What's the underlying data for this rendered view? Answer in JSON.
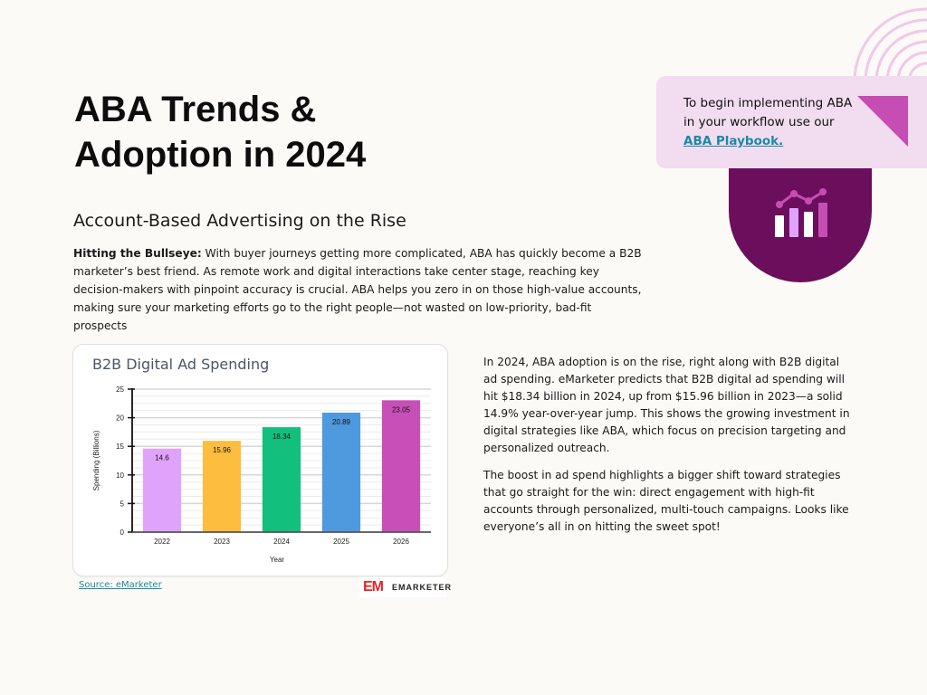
{
  "page": {
    "title": "ABA Trends & Adoption in 2024",
    "subtitle": "Account-Based Advertising on the Rise",
    "intro_lead": "Hitting the Bullseye:",
    "intro_text": " With buyer journeys getting more complicated, ABA has quickly become a B2B marketer’s best friend. As remote work and digital interactions take center stage, reaching key decision-makers with pinpoint accuracy is crucial. ABA helps you zero in on those high-value accounts, making sure your marketing efforts go to the right people—not wasted on low-priority, bad-fit prospects"
  },
  "callout": {
    "text": "To begin implementing ABA in your workflow use our ",
    "link_label": "ABA Playbook.",
    "triangle_color": "#c54db3",
    "background": "#f2dcef"
  },
  "badge": {
    "icon": "bar-chart-trend-icon",
    "background": "#6b0f5c"
  },
  "body": {
    "paragraph_1": "In 2024, ABA adoption is on the rise, right along with B2B digital ad spending. eMarketer predicts that B2B digital ad spending will hit $18.34 billion in 2024, up from $15.96 billion in 2023—a solid 14.9% year-over-year jump. This shows the growing investment in digital strategies like ABA, which focus on precision targeting and personalized outreach.",
    "paragraph_2": "The boost in ad spend highlights a bigger shift toward strategies that go straight for the win: direct engagement with high-fit accounts through personalized, multi-touch campaigns. Looks like everyone’s all in on hitting the sweet spot!"
  },
  "source": {
    "label": "Source: eMarketer",
    "logo_mark": "EM",
    "logo_text": "EMARKETER"
  },
  "chart_data": {
    "type": "bar",
    "title": "B2B Digital Ad Spending",
    "xlabel": "Year",
    "ylabel": "Spending (Billions)",
    "categories": [
      "2022",
      "2023",
      "2024",
      "2025",
      "2026"
    ],
    "values": [
      14.6,
      15.96,
      18.34,
      20.89,
      23.05
    ],
    "data_labels": [
      "14.6",
      "15.96",
      "18.34",
      "20.89",
      "23.05"
    ],
    "colors": [
      "#e0a3fb",
      "#fdbd3f",
      "#12bf7c",
      "#4f99df",
      "#c84fb8"
    ],
    "ylim": [
      0,
      25
    ],
    "yticks": [
      0,
      5,
      10,
      15,
      20,
      25
    ],
    "grid": true,
    "legend": "none"
  }
}
